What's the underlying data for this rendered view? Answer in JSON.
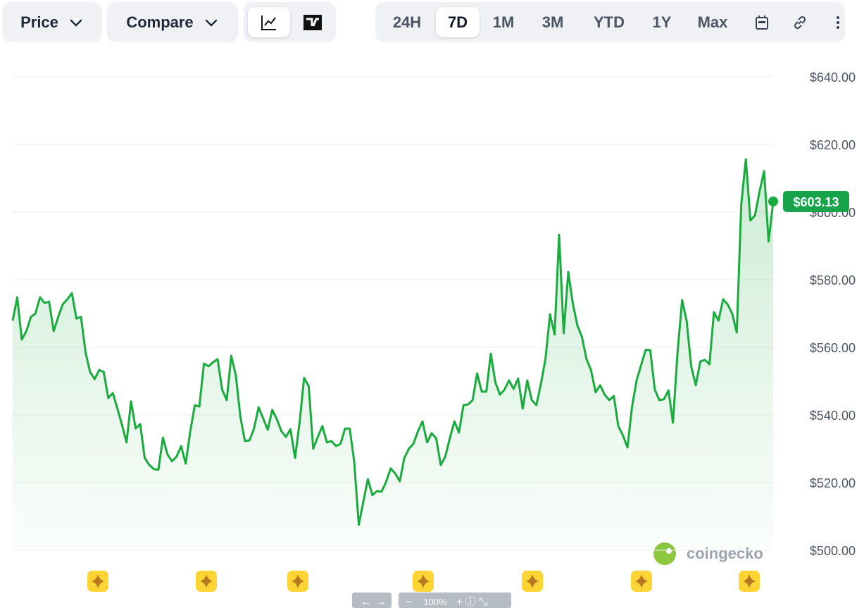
{
  "toolbar": {
    "price": "Price",
    "compare": "Compare",
    "ranges": [
      "24H",
      "7D",
      "1M",
      "3M",
      "YTD",
      "1Y",
      "Max"
    ],
    "active_range": "7D"
  },
  "watermark": "coingecko",
  "zoom": "100%",
  "chart_data": {
    "type": "line",
    "color": "#1aab3e",
    "values": [
      567.9,
      574.8,
      562.3,
      564.8,
      569.0,
      570.0,
      574.8,
      573.1,
      573.5,
      564.8,
      569.0,
      572.7,
      574.2,
      576.0,
      568.5,
      569.0,
      558.5,
      552.7,
      550.6,
      553.3,
      552.7,
      545.0,
      546.5,
      541.9,
      537.1,
      531.9,
      544.0,
      536.0,
      537.3,
      527.3,
      525.2,
      524.0,
      523.8,
      533.3,
      528.3,
      526.3,
      527.7,
      530.8,
      525.6,
      535.2,
      542.9,
      542.5,
      555.2,
      554.4,
      555.6,
      556.5,
      547.5,
      544.4,
      557.5,
      551.7,
      539.4,
      532.3,
      532.5,
      536.0,
      542.3,
      539.0,
      535.6,
      541.5,
      538.8,
      535.2,
      533.5,
      535.8,
      527.3,
      537.7,
      551.0,
      548.5,
      530.0,
      533.5,
      536.7,
      531.9,
      532.3,
      530.8,
      531.5,
      536.0,
      536.0,
      526.3,
      507.5,
      514.4,
      521.0,
      516.3,
      517.5,
      517.3,
      520.2,
      524.2,
      522.7,
      520.4,
      527.3,
      530.0,
      531.5,
      535.2,
      538.1,
      531.9,
      534.6,
      533.1,
      525.2,
      527.7,
      533.1,
      538.1,
      534.8,
      542.9,
      543.1,
      544.4,
      552.3,
      546.9,
      546.9,
      558.1,
      549.6,
      546.0,
      547.5,
      550.2,
      547.7,
      550.8,
      541.9,
      550.2,
      544.4,
      542.9,
      549.2,
      556.5,
      569.8,
      563.8,
      593.3,
      564.2,
      582.3,
      573.1,
      566.5,
      563.1,
      556.5,
      553.3,
      546.7,
      548.8,
      546.0,
      544.4,
      545.6,
      536.7,
      534.0,
      530.4,
      542.3,
      550.2,
      554.8,
      559.2,
      559.2,
      547.5,
      544.4,
      544.6,
      547.3,
      537.7,
      558.5,
      574.0,
      567.9,
      554.4,
      548.8,
      555.8,
      556.3,
      555.0,
      570.4,
      567.9,
      574.2,
      572.7,
      570.0,
      564.4,
      602.3,
      615.6,
      597.5,
      599.0,
      606.0,
      612.1,
      591.3,
      603.13
    ],
    "current_price": {
      "value": 603.13,
      "label": "$603.13"
    },
    "ylim": [
      500,
      640
    ],
    "yticks": [
      {
        "value": 500,
        "label": "$500.00"
      },
      {
        "value": 520,
        "label": "$520.00"
      },
      {
        "value": 540,
        "label": "$540.00"
      },
      {
        "value": 560,
        "label": "$560.00"
      },
      {
        "value": 580,
        "label": "$580.00"
      },
      {
        "value": 600,
        "label": "$600.00"
      },
      {
        "value": 620,
        "label": "$620.00"
      },
      {
        "value": 640,
        "label": "$640.00"
      }
    ],
    "grid": true
  }
}
